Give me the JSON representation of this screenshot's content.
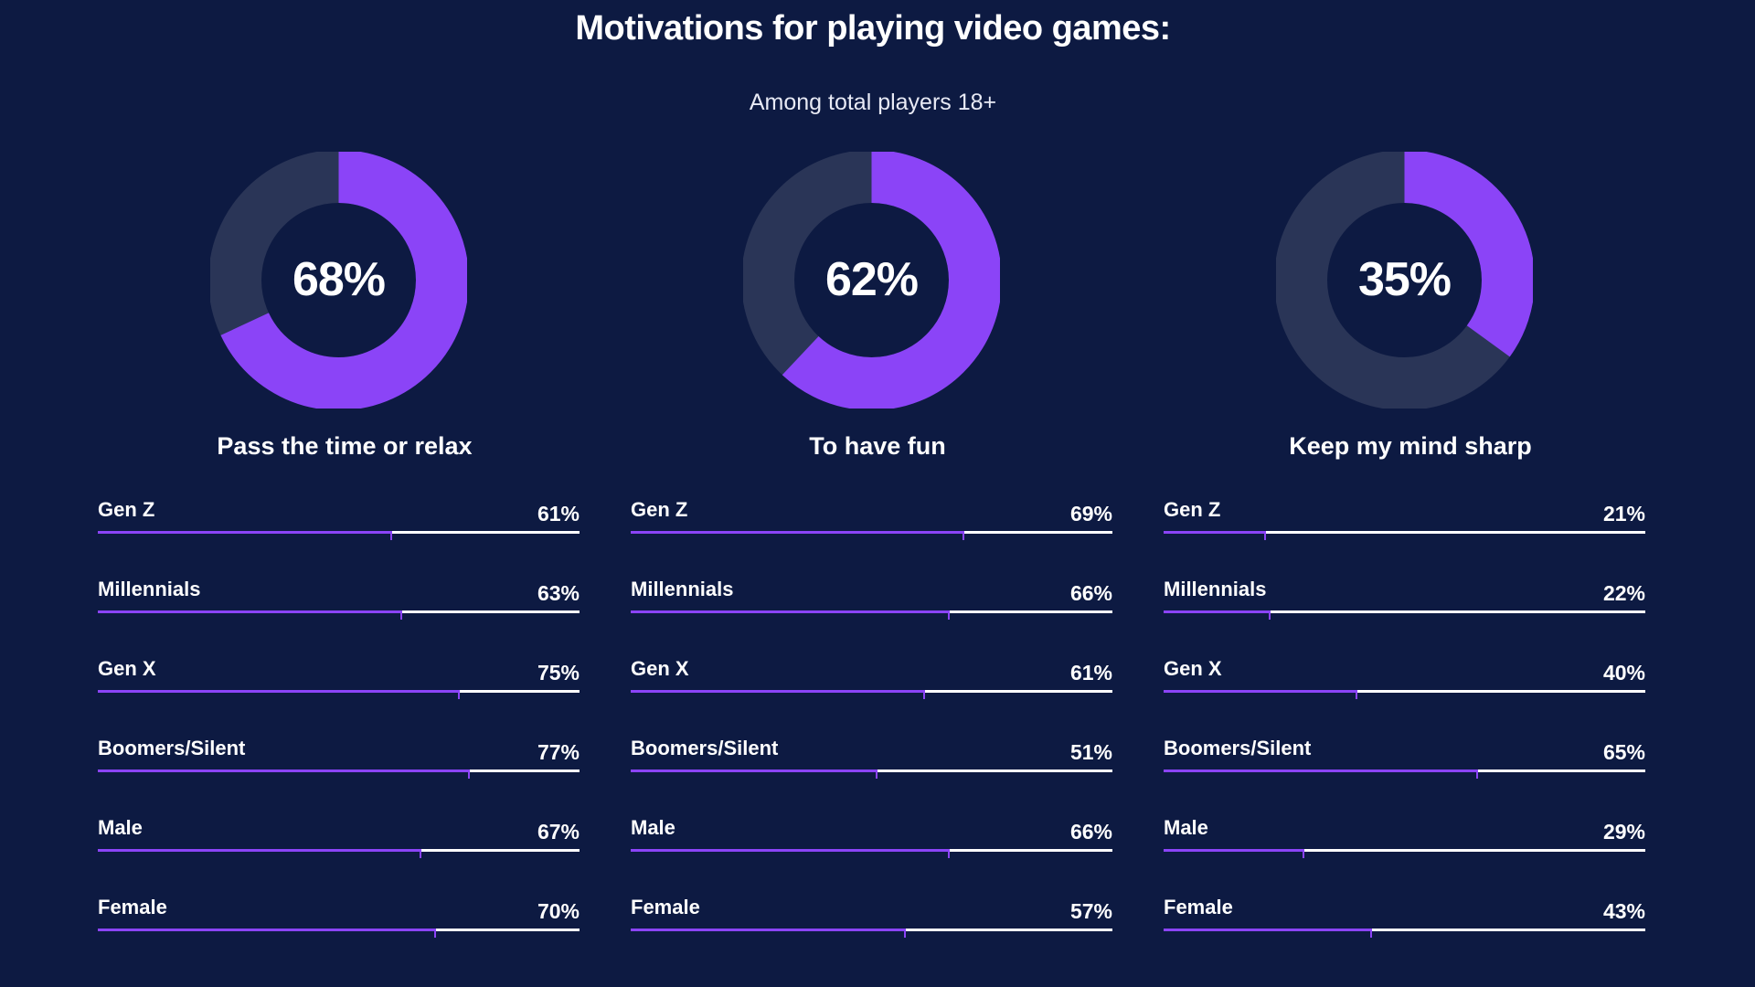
{
  "title": "Motivations for playing video games:",
  "subtitle": "Among total players 18+",
  "colors": {
    "background": "#0d1a42",
    "accent": "#8b44f7",
    "donut_track": "#2a3557",
    "bar_track": "#ffffff"
  },
  "chart_data": [
    {
      "type": "pie",
      "title": "Pass the time or relax",
      "total_value": 68,
      "total_label": "68%",
      "categories": [
        "Gen Z",
        "Millennials",
        "Gen X",
        "Boomers/Silent",
        "Male",
        "Female"
      ],
      "values": [
        61,
        63,
        75,
        77,
        67,
        70
      ],
      "value_labels": [
        "61%",
        "63%",
        "75%",
        "77%",
        "67%",
        "70%"
      ]
    },
    {
      "type": "pie",
      "title": "To have fun",
      "total_value": 62,
      "total_label": "62%",
      "categories": [
        "Gen Z",
        "Millennials",
        "Gen X",
        "Boomers/Silent",
        "Male",
        "Female"
      ],
      "values": [
        69,
        66,
        61,
        51,
        66,
        57
      ],
      "value_labels": [
        "69%",
        "66%",
        "61%",
        "51%",
        "66%",
        "57%"
      ]
    },
    {
      "type": "pie",
      "title": "Keep my mind sharp",
      "total_value": 35,
      "total_label": "35%",
      "categories": [
        "Gen Z",
        "Millennials",
        "Gen X",
        "Boomers/Silent",
        "Male",
        "Female"
      ],
      "values": [
        21,
        22,
        40,
        65,
        29,
        43
      ],
      "value_labels": [
        "21%",
        "22%",
        "40%",
        "65%",
        "29%",
        "43%"
      ]
    }
  ]
}
